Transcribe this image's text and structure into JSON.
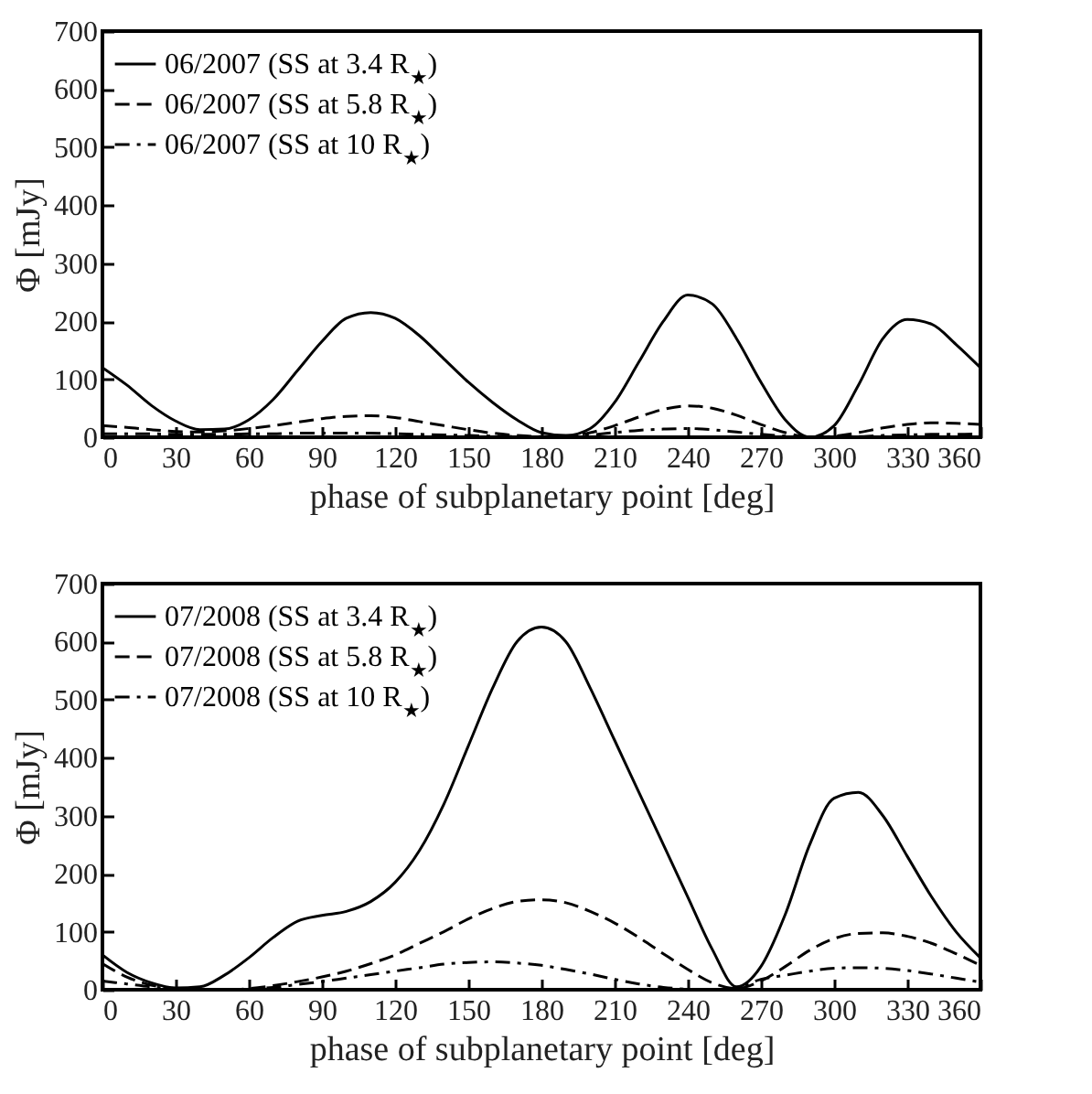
{
  "chart_data": [
    {
      "type": "line",
      "xlabel": "phase of subplanetary point [deg]",
      "ylabel": "Φ [mJy]",
      "xlim": [
        0,
        360
      ],
      "ylim": [
        0,
        700
      ],
      "xticks": [
        0,
        30,
        60,
        90,
        120,
        150,
        180,
        210,
        240,
        270,
        300,
        330,
        360
      ],
      "yticks": [
        0,
        100,
        200,
        300,
        400,
        500,
        600,
        700
      ],
      "grid": false,
      "legend": "top left",
      "x": [
        0,
        10,
        20,
        30,
        40,
        50,
        60,
        70,
        80,
        90,
        100,
        110,
        120,
        130,
        140,
        150,
        160,
        170,
        180,
        190,
        200,
        210,
        220,
        230,
        240,
        250,
        260,
        270,
        280,
        290,
        300,
        310,
        320,
        330,
        340,
        350,
        360
      ],
      "series": [
        {
          "name": "06/2007 (SS at 3.4 R$_{★}$)",
          "color": "#000000",
          "line_style": "solid",
          "values": [
            120,
            90,
            55,
            28,
            13,
            14,
            30,
            65,
            115,
            165,
            205,
            215,
            205,
            175,
            135,
            95,
            60,
            30,
            8,
            3,
            15,
            60,
            130,
            200,
            245,
            230,
            170,
            95,
            30,
            0,
            20,
            90,
            170,
            203,
            195,
            160,
            120
          ]
        },
        {
          "name": "06/2007 (SS at 5.8 R$_{★}$)",
          "color": "#000000",
          "line_style": "dashed",
          "values": [
            20,
            17,
            13,
            10,
            9,
            11,
            15,
            20,
            26,
            32,
            36,
            37,
            34,
            27,
            20,
            13,
            7,
            3,
            1,
            2,
            8,
            20,
            35,
            48,
            54,
            50,
            38,
            22,
            8,
            0,
            2,
            8,
            16,
            22,
            25,
            24,
            22
          ]
        },
        {
          "name": "06/2007 (SS at 10 R$_{★}$)",
          "color": "#000000",
          "line_style": "dashdot",
          "values": [
            6,
            6,
            6,
            5,
            5,
            5,
            6,
            6,
            7,
            7,
            7,
            7,
            6,
            5,
            4,
            3,
            2,
            1,
            0,
            1,
            4,
            8,
            12,
            14,
            15,
            13,
            9,
            5,
            2,
            0,
            0,
            1,
            3,
            4,
            5,
            5,
            6
          ]
        }
      ]
    },
    {
      "type": "line",
      "xlabel": "phase of subplanetary point [deg]",
      "ylabel": "Φ [mJy]",
      "xlim": [
        0,
        360
      ],
      "ylim": [
        0,
        700
      ],
      "xticks": [
        0,
        30,
        60,
        90,
        120,
        150,
        180,
        210,
        240,
        270,
        300,
        330,
        360
      ],
      "yticks": [
        0,
        100,
        200,
        300,
        400,
        500,
        600,
        700
      ],
      "grid": false,
      "legend": "top left",
      "x": [
        0,
        10,
        20,
        30,
        40,
        50,
        60,
        70,
        80,
        90,
        100,
        110,
        120,
        130,
        140,
        150,
        160,
        170,
        180,
        190,
        200,
        210,
        220,
        230,
        240,
        250,
        260,
        270,
        280,
        290,
        300,
        310,
        320,
        330,
        340,
        350,
        360
      ],
      "series": [
        {
          "name": "07/2008 (SS at 3.4 R$_{★}$)",
          "color": "#000000",
          "line_style": "solid",
          "values": [
            60,
            30,
            12,
            3,
            5,
            25,
            55,
            90,
            118,
            128,
            135,
            152,
            185,
            240,
            320,
            420,
            520,
            600,
            625,
            600,
            520,
            430,
            340,
            250,
            160,
            70,
            5,
            40,
            130,
            250,
            330,
            340,
            300,
            230,
            160,
            100,
            55
          ]
        },
        {
          "name": "07/2008 (SS at 5.8 R$_{★}$)",
          "color": "#000000",
          "line_style": "dashed",
          "values": [
            45,
            22,
            8,
            2,
            0,
            0,
            2,
            7,
            14,
            22,
            32,
            45,
            60,
            80,
            100,
            122,
            140,
            152,
            155,
            150,
            135,
            115,
            90,
            62,
            35,
            12,
            2,
            15,
            40,
            68,
            88,
            97,
            98,
            92,
            80,
            62,
            42
          ]
        },
        {
          "name": "07/2008 (SS at 10 R$_{★}$)",
          "color": "#000000",
          "line_style": "dashdot",
          "values": [
            15,
            10,
            5,
            2,
            0,
            0,
            1,
            4,
            9,
            14,
            20,
            26,
            32,
            38,
            44,
            47,
            48,
            46,
            42,
            35,
            27,
            18,
            10,
            4,
            1,
            0,
            3,
            18,
            25,
            32,
            37,
            38,
            37,
            33,
            27,
            20,
            13
          ]
        }
      ]
    }
  ]
}
